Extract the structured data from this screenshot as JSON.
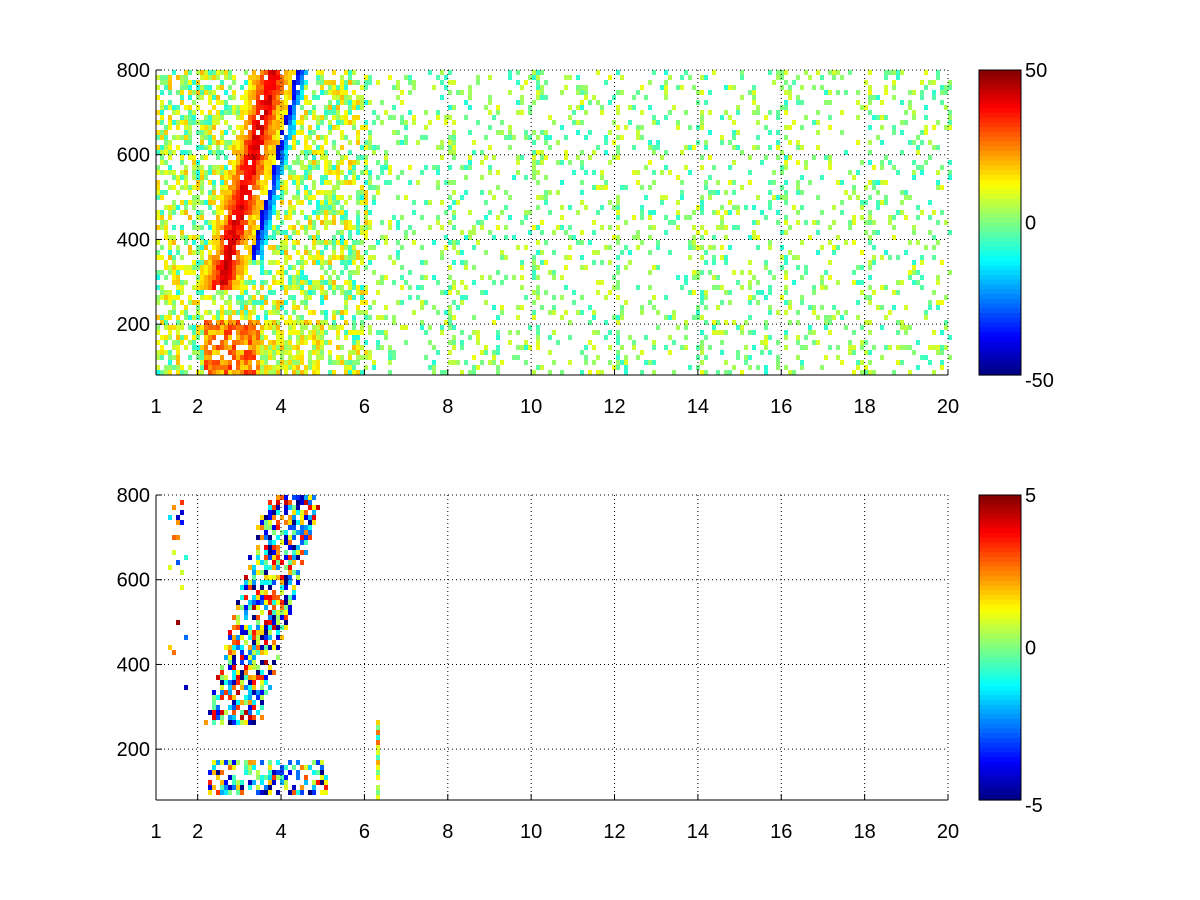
{
  "chart_data": [
    {
      "type": "heatmap",
      "title": "",
      "xlabel": "",
      "ylabel": "",
      "xlim": [
        1,
        20
      ],
      "ylim": [
        80,
        800
      ],
      "x_ticks": [
        1,
        2,
        4,
        6,
        8,
        10,
        12,
        14,
        16,
        18,
        20
      ],
      "y_ticks": [
        200,
        400,
        600,
        800
      ],
      "grid": true,
      "colormap": "jet",
      "clim": [
        -50,
        50
      ],
      "colorbar_ticks": [
        "50",
        "0",
        "-50"
      ],
      "features": [
        {
          "desc": "diagonal ridge",
          "x_range": [
            2.5,
            4.2
          ],
          "y_range": [
            300,
            800
          ],
          "value": 40
        },
        {
          "desc": "adjacent trough",
          "x_range": [
            3.4,
            4.6
          ],
          "y_range": [
            350,
            800
          ],
          "value": -40
        },
        {
          "desc": "low band",
          "x_range": [
            2.0,
            5.0
          ],
          "y_range": [
            90,
            200
          ],
          "value": 30
        },
        {
          "desc": "sparse speckle",
          "x_range": [
            6,
            20
          ],
          "y_range": [
            80,
            800
          ],
          "value": 5
        }
      ]
    },
    {
      "type": "heatmap",
      "title": "",
      "xlabel": "",
      "ylabel": "",
      "xlim": [
        1,
        20
      ],
      "ylim": [
        80,
        800
      ],
      "x_ticks": [
        1,
        2,
        4,
        6,
        8,
        10,
        12,
        14,
        16,
        18,
        20
      ],
      "y_ticks": [
        200,
        400,
        600,
        800
      ],
      "grid": true,
      "colormap": "jet",
      "clim": [
        -5,
        5
      ],
      "colorbar_ticks": [
        "5",
        "0",
        "-5"
      ],
      "features": [
        {
          "desc": "diagonal streaks",
          "x_range": [
            2.4,
            4.9
          ],
          "y_range": [
            250,
            780
          ],
          "value": -3
        },
        {
          "desc": "low band",
          "x_range": [
            2.2,
            5.1
          ],
          "y_range": [
            90,
            170
          ],
          "value": -4
        },
        {
          "desc": "isolated column",
          "x_range": [
            6.2,
            6.3
          ],
          "y_range": [
            80,
            260
          ],
          "value": 1
        }
      ]
    }
  ]
}
